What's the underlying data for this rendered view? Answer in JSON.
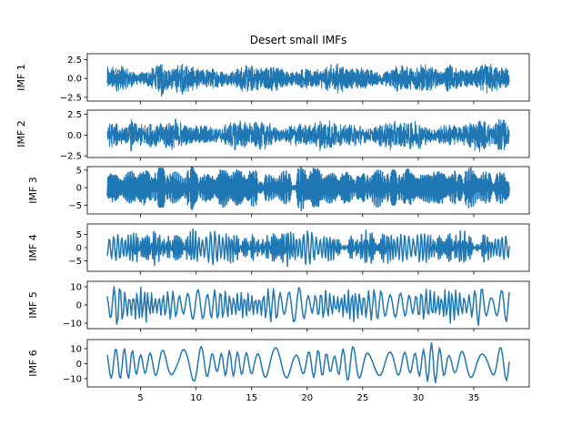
{
  "chart_data": {
    "type": "line",
    "title": "Desert small IMFs",
    "x_range": [
      2.0,
      38.2
    ],
    "xlim": [
      0.2,
      40.0
    ],
    "x_ticks": [
      5,
      10,
      15,
      20,
      25,
      30,
      35
    ],
    "grid": false,
    "line_color": "#1f77b4",
    "panels": [
      {
        "name": "IMF 1",
        "ylabel": "IMF 1",
        "ylim": [
          -3.0,
          3.3
        ],
        "y_ticks": [
          2.5,
          0.0,
          -2.5
        ],
        "y_tick_labels": [
          "2.5",
          "0.0",
          "−2.5"
        ],
        "approx_amplitude": 2.7,
        "oscillations": 2200,
        "peak_x": [
          6.9,
          32.8
        ]
      },
      {
        "name": "IMF 2",
        "ylabel": "IMF 2",
        "ylim": [
          -2.7,
          3.0
        ],
        "y_ticks": [
          2.5,
          0.0,
          -2.5
        ],
        "y_tick_labels": [
          "2.5",
          "0.0",
          "−2.5"
        ],
        "approx_amplitude": 2.6,
        "oscillations": 1100,
        "peak_x": [
          4.2,
          37.4
        ]
      },
      {
        "name": "IMF 3",
        "ylabel": "IMF 3",
        "ylim": [
          -7.5,
          6.0
        ],
        "y_ticks": [
          5,
          0,
          -5
        ],
        "y_tick_labels": [
          "5",
          "0",
          "−5"
        ],
        "approx_amplitude": 6.8,
        "oscillations": 520,
        "peak_x": [
          9.5,
          19.5,
          31.2
        ]
      },
      {
        "name": "IMF 4",
        "ylabel": "IMF 4",
        "ylim": [
          -9.0,
          9.0
        ],
        "y_ticks": [
          5,
          0,
          -5
        ],
        "y_tick_labels": [
          "5",
          "0",
          "−5"
        ],
        "approx_amplitude": 8.0,
        "oscillations": 230,
        "peak_x": [
          9.8,
          18.0,
          30.0
        ]
      },
      {
        "name": "IMF 5",
        "ylabel": "IMF 5",
        "ylim": [
          -13.0,
          13.0
        ],
        "y_ticks": [
          10,
          0,
          -10
        ],
        "y_tick_labels": [
          "10",
          "0",
          "−10"
        ],
        "approx_amplitude": 12.0,
        "oscillations": 95,
        "peak_x": [
          3.0,
          35.5
        ]
      },
      {
        "name": "IMF 6",
        "ylabel": "IMF 6",
        "ylim": [
          -15.5,
          16.0
        ],
        "y_ticks": [
          10,
          0,
          -10
        ],
        "y_tick_labels": [
          "10",
          "0",
          "−10"
        ],
        "approx_amplitude": 14.0,
        "oscillations": 42,
        "peak_x": [
          8.7,
          31.2
        ]
      }
    ]
  }
}
